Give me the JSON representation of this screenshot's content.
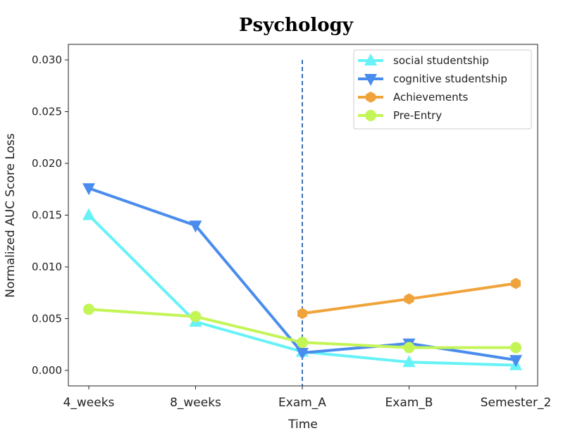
{
  "chart_data": {
    "type": "line",
    "title": "Psychology",
    "xlabel": "Time",
    "ylabel": "Normalized AUC Score Loss",
    "categories": [
      "4_weeks",
      "8_weeks",
      "Exam_A",
      "Exam_B",
      "Semester_2"
    ],
    "ylim": [
      -0.0015,
      0.0315
    ],
    "yticks": [
      "0.000",
      "0.005",
      "0.010",
      "0.015",
      "0.020",
      "0.025",
      "0.030"
    ],
    "grid": false,
    "legend_placement": "top-right",
    "vline": {
      "category": "Exam_A",
      "y_top": 0.03,
      "style": "dashed",
      "color": "#3a6fb5"
    },
    "series": [
      {
        "name": "social studentship",
        "color": "#66f2f7",
        "marker": "triangle-up",
        "values": [
          0.015,
          0.0047,
          0.0018,
          0.0008,
          0.0005
        ]
      },
      {
        "name": "cognitive studentship",
        "color": "#4a8ced",
        "marker": "triangle-down",
        "values": [
          0.0176,
          0.014,
          0.0017,
          0.0026,
          0.001
        ]
      },
      {
        "name": "Achievements",
        "color": "#f0a33a",
        "marker": "hexagon",
        "values": [
          null,
          null,
          0.0055,
          0.0069,
          0.0084
        ]
      },
      {
        "name": "Pre-Entry",
        "color": "#c3f556",
        "marker": "circle",
        "values": [
          0.0059,
          0.0052,
          0.0027,
          0.0022,
          0.0022
        ]
      }
    ]
  }
}
